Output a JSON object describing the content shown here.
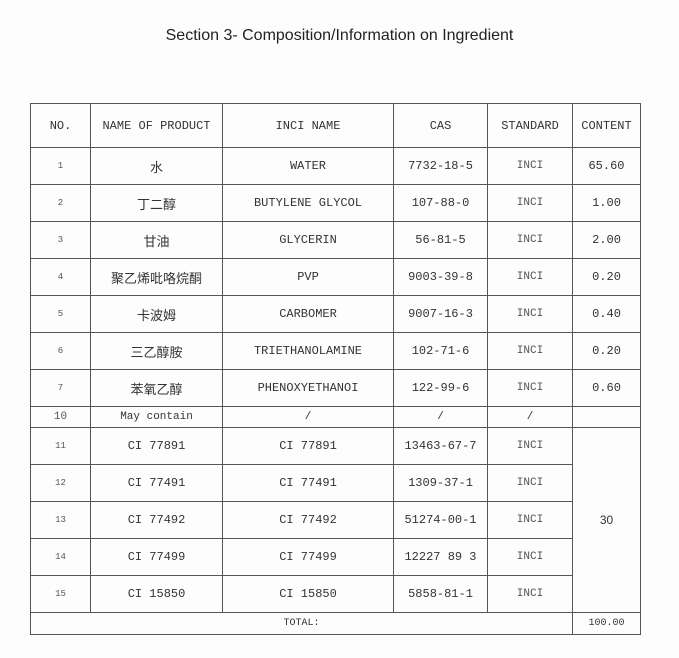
{
  "title": "Section 3- Composition/Information on Ingredient",
  "headers": [
    "NO.",
    "NAME OF PRODUCT",
    "INCI NAME",
    "CAS",
    "STANDARD",
    "CONTENT"
  ],
  "rows": [
    {
      "no": "1",
      "name": "水",
      "inci": "WATER",
      "cas": "7732-18-5",
      "std": "INCI",
      "content": "65.60"
    },
    {
      "no": "2",
      "name": "丁二醇",
      "inci": "BUTYLENE GLYCOL",
      "cas": "107-88-0",
      "std": "INCI",
      "content": "1.00"
    },
    {
      "no": "3",
      "name": "甘油",
      "inci": "GLYCERIN",
      "cas": "56-81-5",
      "std": "INCI",
      "content": "2.00"
    },
    {
      "no": "4",
      "name": "聚乙烯吡咯烷酮",
      "inci": "PVP",
      "cas": "9003-39-8",
      "std": "INCI",
      "content": "0.20"
    },
    {
      "no": "5",
      "name": "卡波姆",
      "inci": "CARBOMER",
      "cas": "9007-16-3",
      "std": "INCI",
      "content": "0.40"
    },
    {
      "no": "6",
      "name": "三乙醇胺",
      "inci": "TRIETHANOLAMINE",
      "cas": "102-71-6",
      "std": "INCI",
      "content": "0.20"
    },
    {
      "no": "7",
      "name": "苯氧乙醇",
      "inci": "PHENOXYETHANOI",
      "cas": "122-99-6",
      "std": "INCI",
      "content": "0.60"
    }
  ],
  "may_contain": {
    "no": "10",
    "name": "May contain",
    "inci": "/",
    "cas": "/",
    "std": "/"
  },
  "colorants": [
    {
      "no": "11",
      "name": "CI 77891",
      "inci": "CI 77891",
      "cas": "13463-67-7",
      "std": "INCI"
    },
    {
      "no": "12",
      "name": "CI 77491",
      "inci": "CI 77491",
      "cas": "1309-37-1",
      "std": "INCI"
    },
    {
      "no": "13",
      "name": "CI 77492",
      "inci": "CI 77492",
      "cas": "51274-00-1",
      "std": "INCI"
    },
    {
      "no": "14",
      "name": "CI 77499",
      "inci": "CI 77499",
      "cas": "12227 89 3",
      "std": "INCI"
    },
    {
      "no": "15",
      "name": "CI 15850",
      "inci": "CI 15850",
      "cas": "5858-81-1",
      "std": "INCI"
    }
  ],
  "colorants_content": "30",
  "total": {
    "label": "TOTAL:",
    "value": "100.00"
  }
}
